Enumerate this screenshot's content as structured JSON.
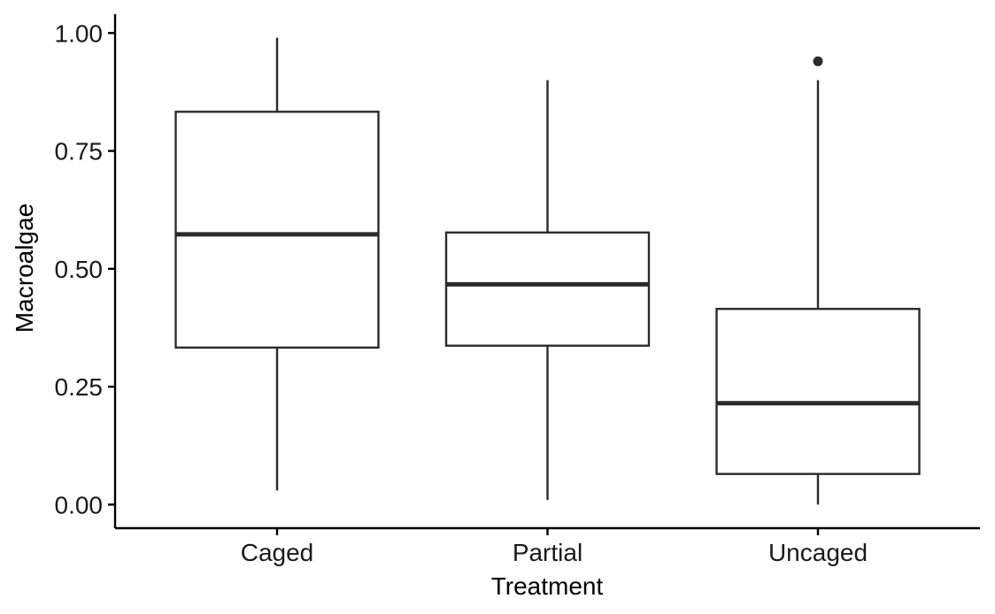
{
  "chart_data": {
    "type": "boxplot",
    "title": "",
    "xlabel": "Treatment",
    "ylabel": "Macroalgae",
    "categories": [
      "Caged",
      "Partial",
      "Uncaged"
    ],
    "ylim": [
      -0.05,
      1.04
    ],
    "yticks": [
      0.0,
      0.25,
      0.5,
      0.75,
      1.0
    ],
    "ytick_labels": [
      "0.00",
      "0.25",
      "0.50",
      "0.75",
      "1.00"
    ],
    "grid": false,
    "legend": "none",
    "boxes": [
      {
        "category": "Caged",
        "whisker_low": 0.03,
        "q1": 0.333,
        "median": 0.573,
        "q3": 0.833,
        "whisker_high": 0.99,
        "outliers": []
      },
      {
        "category": "Partial",
        "whisker_low": 0.01,
        "q1": 0.337,
        "median": 0.467,
        "q3": 0.577,
        "whisker_high": 0.9,
        "outliers": []
      },
      {
        "category": "Uncaged",
        "whisker_low": 0.0,
        "q1": 0.065,
        "median": 0.215,
        "q3": 0.415,
        "whisker_high": 0.9,
        "outliers": [
          0.94
        ]
      }
    ],
    "colors": {
      "box_stroke": "#2b2b2b",
      "box_fill": "#ffffff",
      "axis": "#000000",
      "point": "#2b2b2b"
    }
  }
}
